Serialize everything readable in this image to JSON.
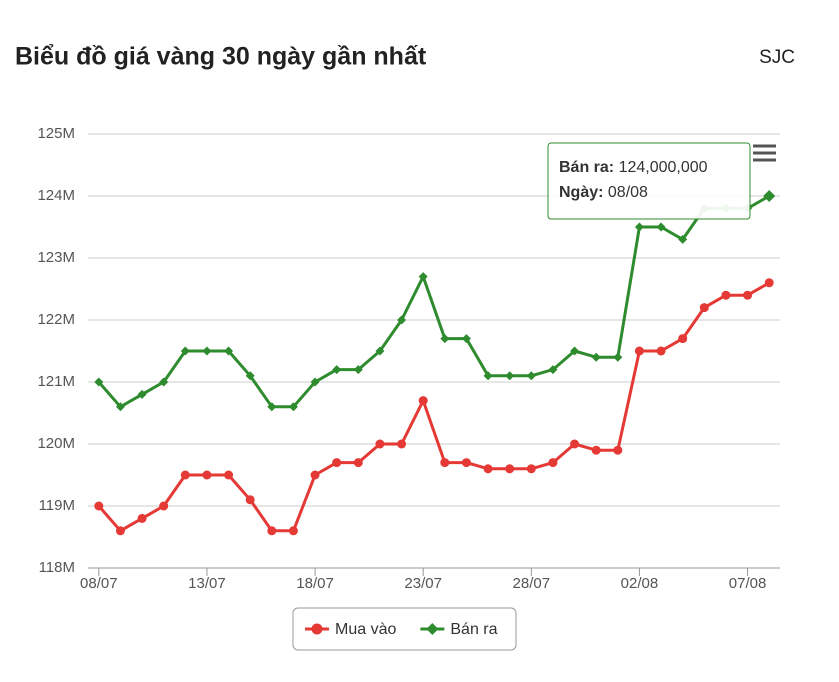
{
  "chart_data": {
    "type": "line",
    "title": "Biểu đồ giá vàng 30 ngày gần nhất",
    "subtitle": "SJC",
    "categories": [
      "08/07",
      null,
      null,
      null,
      null,
      "13/07",
      null,
      null,
      null,
      null,
      "18/07",
      null,
      null,
      null,
      null,
      "23/07",
      null,
      null,
      null,
      null,
      "28/07",
      null,
      null,
      null,
      null,
      "02/08",
      null,
      null,
      null,
      null,
      "07/08",
      null
    ],
    "series": [
      {
        "name": "Mua vào",
        "color": "#e53935",
        "marker": "circle",
        "values": [
          119000000,
          118600000,
          118800000,
          119000000,
          119500000,
          119500000,
          119500000,
          119100000,
          118600000,
          118600000,
          119500000,
          119700000,
          119700000,
          120000000,
          120000000,
          120700000,
          119700000,
          119700000,
          119600000,
          119600000,
          119600000,
          119700000,
          120000000,
          119900000,
          119900000,
          121500000,
          121500000,
          121700000,
          122200000,
          122400000,
          122400000,
          122600000
        ]
      },
      {
        "name": "Bán ra",
        "color": "#2e8b2e",
        "marker": "diamond",
        "values": [
          121000000,
          120600000,
          120800000,
          121000000,
          121500000,
          121500000,
          121500000,
          121100000,
          120600000,
          120600000,
          121000000,
          121200000,
          121200000,
          121500000,
          122000000,
          122700000,
          121700000,
          121700000,
          121100000,
          121100000,
          121100000,
          121200000,
          121500000,
          121400000,
          121400000,
          123500000,
          123500000,
          123300000,
          123800000,
          123800000,
          123800000,
          124000000
        ]
      }
    ],
    "ylim": [
      118000000,
      125000000
    ],
    "yticks": [
      {
        "value": 118000000,
        "label": "118M"
      },
      {
        "value": 119000000,
        "label": "119M"
      },
      {
        "value": 120000000,
        "label": "120M"
      },
      {
        "value": 121000000,
        "label": "121M"
      },
      {
        "value": 122000000,
        "label": "122M"
      },
      {
        "value": 123000000,
        "label": "123M"
      },
      {
        "value": 124000000,
        "label": "124M"
      },
      {
        "value": 125000000,
        "label": "125M"
      }
    ],
    "grid": true,
    "tooltip": {
      "lines": [
        {
          "label": "Bán ra:",
          "value": "124,000,000"
        },
        {
          "label": "Ngày:",
          "value": "08/08"
        }
      ]
    }
  }
}
